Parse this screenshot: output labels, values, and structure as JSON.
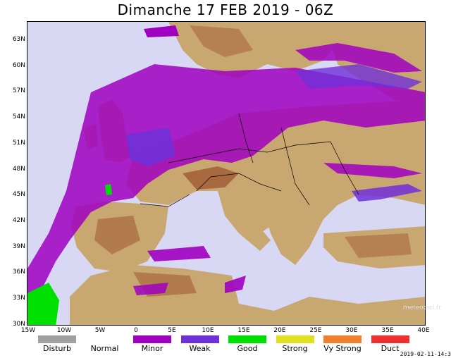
{
  "title": "Dimanche 17 FEB 2019 - 06Z",
  "lat_labels": [
    "63N",
    "60N",
    "57N",
    "54N",
    "51N",
    "48N",
    "45N",
    "42N",
    "39N",
    "36N",
    "33N",
    "30N"
  ],
  "lon_labels": [
    "15W",
    "10W",
    "5W",
    "0",
    "5E",
    "10E",
    "15E",
    "20E",
    "25E",
    "30E",
    "35E",
    "40E"
  ],
  "legend": [
    {
      "label": "Disturb",
      "color": "#a0a0a0"
    },
    {
      "label": "Normal",
      "color": "#ffffff"
    },
    {
      "label": "Minor",
      "color": "#a000c0"
    },
    {
      "label": "Weak",
      "color": "#7030d8"
    },
    {
      "label": "Good",
      "color": "#00e000"
    },
    {
      "label": "Strong",
      "color": "#e0e020"
    },
    {
      "label": "Vy Strong",
      "color": "#f08030"
    },
    {
      "label": "Duct",
      "color": "#f03030"
    }
  ],
  "credit": "meteociel.fr",
  "timestamp": "2019-02-11-14:3",
  "colors": {
    "sea": "#d8d8f4",
    "land": "#c8a870",
    "mountain": "#a86840",
    "minor": "#a000c0",
    "weak": "#7030d8",
    "good": "#00e000"
  }
}
